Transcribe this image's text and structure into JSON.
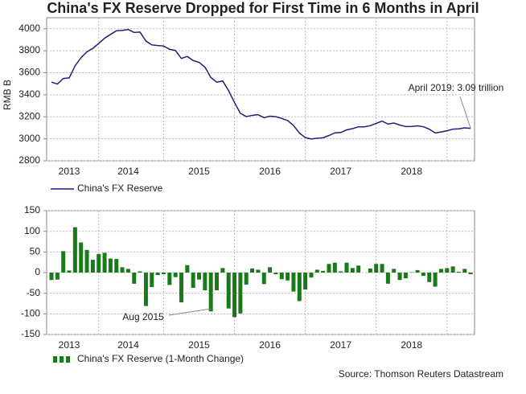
{
  "title": "China's FX Reserve Dropped for First Time in 6 Months in April",
  "source": "Source: Thomson Reuters Datastream",
  "chart_data": [
    {
      "type": "line",
      "ylabel": "RMB B",
      "categories": [
        null,
        null,
        null,
        "2013",
        null,
        null,
        null,
        null,
        null,
        null,
        null,
        null,
        null,
        "2014",
        null,
        null,
        null,
        null,
        null,
        null,
        null,
        null,
        null,
        null,
        null,
        "2015",
        null,
        null,
        null,
        null,
        null,
        null,
        null,
        null,
        null,
        null,
        null,
        "2016",
        null,
        null,
        null,
        null,
        null,
        null,
        null,
        null,
        null,
        null,
        null,
        "2017",
        null,
        null,
        null,
        null,
        null,
        null,
        null,
        null,
        null,
        null,
        null,
        "2018",
        null,
        null,
        null,
        null,
        null,
        null,
        null,
        null,
        null,
        null
      ],
      "series": [
        {
          "name": "China's FX Reserve",
          "color": "#1f1f7a",
          "values": [
            3515,
            3497,
            3548,
            3553,
            3663,
            3736,
            3790,
            3821,
            3866,
            3914,
            3948,
            3981,
            3984,
            3993,
            3966,
            3969,
            3888,
            3853,
            3847,
            3843,
            3813,
            3802,
            3730,
            3748,
            3711,
            3694,
            3651,
            3557,
            3514,
            3525,
            3438,
            3330,
            3231,
            3202,
            3213,
            3219,
            3192,
            3205,
            3201,
            3185,
            3166,
            3121,
            3052,
            3011,
            2998,
            3005,
            3009,
            3030,
            3054,
            3057,
            3081,
            3092,
            3109,
            3109,
            3119,
            3140,
            3161,
            3134,
            3143,
            3125,
            3111,
            3112,
            3118,
            3110,
            3087,
            3053,
            3062,
            3073,
            3088,
            3090,
            3099,
            3095
          ]
        }
      ],
      "ylim": [
        2800,
        4100
      ],
      "yticks": [
        2800,
        3000,
        3200,
        3400,
        3600,
        3800,
        4000
      ],
      "grid": true,
      "annotation": "April 2019: 3.09 trillion"
    },
    {
      "type": "bar",
      "categories": [
        null,
        null,
        null,
        "2013",
        null,
        null,
        null,
        null,
        null,
        null,
        null,
        null,
        null,
        "2014",
        null,
        null,
        null,
        null,
        null,
        null,
        null,
        null,
        null,
        null,
        null,
        "2015",
        null,
        null,
        null,
        null,
        null,
        null,
        null,
        null,
        null,
        null,
        null,
        "2016",
        null,
        null,
        null,
        null,
        null,
        null,
        null,
        null,
        null,
        null,
        null,
        "2017",
        null,
        null,
        null,
        null,
        null,
        null,
        null,
        null,
        null,
        null,
        null,
        "2018",
        null,
        null,
        null,
        null,
        null,
        null,
        null,
        null,
        null,
        null
      ],
      "series": [
        {
          "name": "China's FX Reserve (1-Month Change)",
          "color": "#1a7a1a",
          "values": [
            -18,
            -17,
            52,
            5,
            110,
            73,
            55,
            31,
            45,
            48,
            34,
            33,
            13,
            9,
            -27,
            3,
            -81,
            -35,
            -6,
            -4,
            -30,
            -11,
            -72,
            18,
            -37,
            -17,
            -43,
            -94,
            -43,
            11,
            -87,
            -108,
            -99,
            -29,
            10,
            7,
            -28,
            13,
            -4,
            -16,
            -19,
            -46,
            -69,
            -41,
            -12,
            7,
            4,
            21,
            24,
            3,
            24,
            11,
            17,
            0,
            10,
            21,
            21,
            -27,
            9,
            -18,
            -14,
            1,
            6,
            -8,
            -23,
            -34,
            9,
            11,
            15,
            2,
            9,
            -4
          ]
        }
      ],
      "ylim": [
        -150,
        150
      ],
      "yticks": [
        -150,
        -100,
        -50,
        0,
        50,
        100,
        150
      ],
      "grid": true,
      "annotation": "Aug 2015"
    }
  ]
}
